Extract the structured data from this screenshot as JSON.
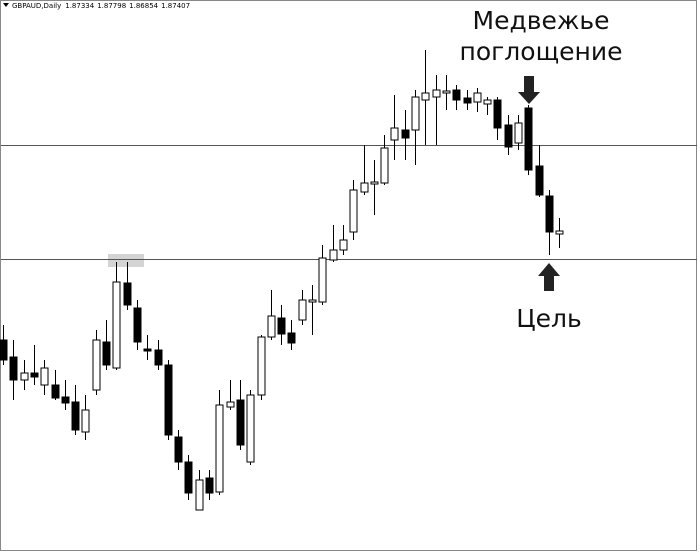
{
  "chart_data": {
    "type": "candlestick",
    "title": "GBPAUD,Daily",
    "header_values": [
      1.87334,
      1.87798,
      1.86854,
      1.87407
    ],
    "ylim": [
      1.7814,
      1.947
    ],
    "levels": [
      1.9035,
      1.8693
    ],
    "bull_color": "#ffffff",
    "bear_color": "#000000",
    "open": [
      1.845,
      1.8399,
      1.833,
      1.8351,
      1.8315,
      1.8315,
      1.8279,
      1.8264,
      1.8174,
      1.83,
      1.8444,
      1.8366,
      1.8621,
      1.8546,
      1.8423,
      1.842,
      1.8375,
      1.8159,
      1.8084,
      1.794,
      1.8036,
      1.7994,
      1.8249,
      1.827,
      1.8084,
      1.8285,
      1.8459,
      1.8516,
      1.8471,
      1.851,
      1.8564,
      1.8564,
      1.869,
      1.872,
      1.8774,
      1.8894,
      1.8918,
      1.8921,
      1.905,
      1.908,
      1.908,
      1.917,
      1.9179,
      1.9191,
      1.92,
      1.9176,
      1.9164,
      1.9158,
      1.917,
      1.9095,
      1.9041,
      1.9146,
      1.8972,
      1.8882,
      1.8768
    ],
    "high": [
      1.8495,
      1.845,
      1.839,
      1.8435,
      1.839,
      1.836,
      1.833,
      1.8315,
      1.8285,
      1.848,
      1.851,
      1.8684,
      1.8684,
      1.857,
      1.8465,
      1.845,
      1.839,
      1.818,
      1.8105,
      1.806,
      1.806,
      1.83,
      1.833,
      1.833,
      1.83,
      1.8465,
      1.86,
      1.8555,
      1.851,
      1.86,
      1.8615,
      1.8735,
      1.8795,
      1.8795,
      1.893,
      1.9035,
      1.899,
      1.9065,
      1.9185,
      1.914,
      1.92,
      1.932,
      1.9245,
      1.9245,
      1.9215,
      1.92,
      1.9206,
      1.9179,
      1.9179,
      1.9125,
      1.9125,
      1.9155,
      1.9035,
      1.89,
      1.8816
    ],
    "low": [
      1.8375,
      1.827,
      1.83,
      1.8315,
      1.8285,
      1.827,
      1.824,
      1.8165,
      1.815,
      1.8285,
      1.836,
      1.836,
      1.854,
      1.842,
      1.839,
      1.836,
      1.815,
      1.806,
      1.797,
      1.794,
      1.797,
      1.7985,
      1.824,
      1.812,
      1.8075,
      1.827,
      1.845,
      1.8435,
      1.842,
      1.8495,
      1.8465,
      1.8555,
      1.8684,
      1.8705,
      1.875,
      1.8885,
      1.8825,
      1.8915,
      1.899,
      1.899,
      1.8975,
      1.9035,
      1.9035,
      1.914,
      1.914,
      1.914,
      1.9134,
      1.9125,
      1.905,
      1.9005,
      1.902,
      1.8945,
      1.8879,
      1.8705,
      1.8726
    ],
    "close": [
      1.839,
      1.833,
      1.8351,
      1.8339,
      1.8366,
      1.8276,
      1.8261,
      1.818,
      1.824,
      1.845,
      1.8375,
      1.8624,
      1.8555,
      1.8444,
      1.8417,
      1.8375,
      1.8165,
      1.8084,
      1.7991,
      1.803,
      1.7991,
      1.8255,
      1.8264,
      1.8135,
      1.8285,
      1.8459,
      1.8522,
      1.8468,
      1.8441,
      1.857,
      1.857,
      1.8696,
      1.872,
      1.875,
      1.89,
      1.8921,
      1.8924,
      1.9026,
      1.9086,
      1.9056,
      1.9179,
      1.9191,
      1.92,
      1.9197,
      1.917,
      1.9161,
      1.9191,
      1.917,
      1.9086,
      1.9029,
      1.9101,
      1.896,
      1.8885,
      1.8774,
      1.8777
    ],
    "annotations": [
      {
        "lines": [
          "Медвежье",
          "поглощение"
        ]
      },
      {
        "lines": [
          "Цель"
        ]
      }
    ]
  }
}
